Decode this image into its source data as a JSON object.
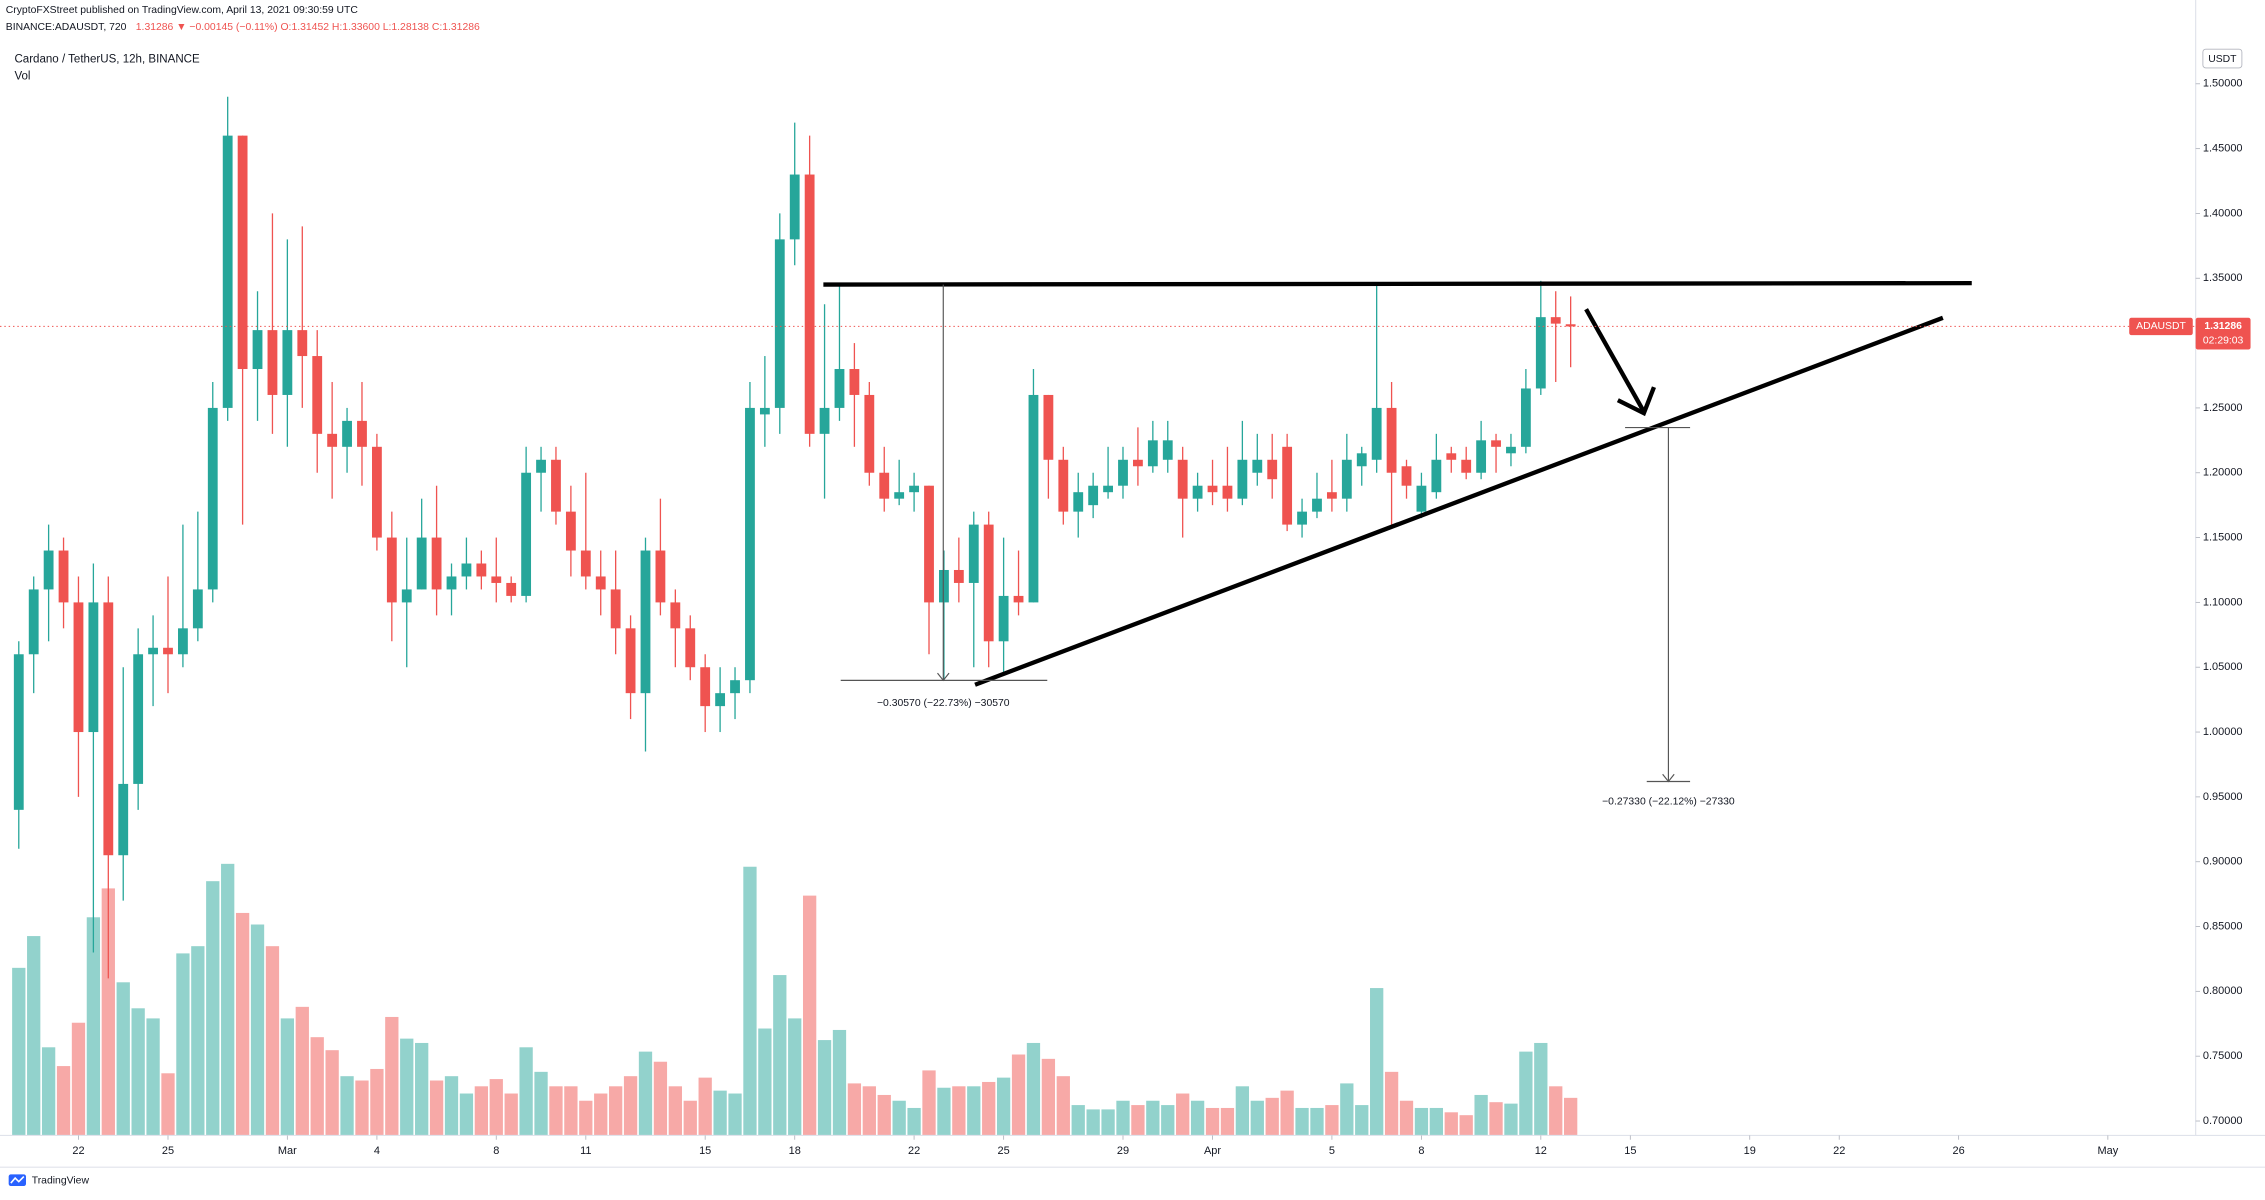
{
  "header": {
    "published": "CryptoFXStreet published on TradingView.com, April 13, 2021 09:30:59 UTC",
    "symbol": "BINANCE:ADAUSDT, 720",
    "quote": "1.31286 ▼ −0.00145 (−0.11%) O:1.31452 H:1.33600 L:1.28138 C:1.31286"
  },
  "footer": {
    "brand": "TradingView"
  },
  "chart_data": {
    "type": "candlestick",
    "title": "Cardano / TetherUS, 12h, BINANCE",
    "subtitle": "Vol",
    "currency": "USDT",
    "symbol_tag": "ADAUSDT",
    "countdown": "02:29:03",
    "up_color": "#26a69a",
    "down_color": "#ef5350",
    "open": [
      0.94,
      1.06,
      1.11,
      1.14,
      1.1,
      1.0,
      1.1,
      0.905,
      0.96,
      1.06,
      1.065,
      1.06,
      1.08,
      1.11,
      1.25,
      1.46,
      1.28,
      1.31,
      1.26,
      1.31,
      1.29,
      1.23,
      1.22,
      1.24,
      1.22,
      1.15,
      1.1,
      1.11,
      1.15,
      1.11,
      1.12,
      1.13,
      1.12,
      1.115,
      1.105,
      1.2,
      1.21,
      1.17,
      1.14,
      1.12,
      1.11,
      1.08,
      1.03,
      1.14,
      1.1,
      1.08,
      1.05,
      1.02,
      1.03,
      1.04,
      1.245,
      1.25,
      1.38,
      1.43,
      1.23,
      1.25,
      1.28,
      1.26,
      1.2,
      1.18,
      1.185,
      1.19,
      1.1,
      1.125,
      1.115,
      1.16,
      1.07,
      1.105,
      1.1,
      1.26,
      1.21,
      1.17,
      1.175,
      1.185,
      1.19,
      1.21,
      1.205,
      1.21,
      1.21,
      1.18,
      1.19,
      1.19,
      1.18,
      1.2,
      1.21,
      1.22,
      1.16,
      1.17,
      1.185,
      1.18,
      1.205,
      1.21,
      1.25,
      1.205,
      1.17,
      1.185,
      1.215,
      1.21,
      1.2,
      1.225,
      1.215,
      1.22,
      1.265,
      1.32,
      1.31452
    ],
    "high": [
      1.07,
      1.12,
      1.16,
      1.15,
      1.12,
      1.13,
      1.12,
      1.05,
      1.08,
      1.09,
      1.12,
      1.16,
      1.17,
      1.27,
      1.49,
      1.46,
      1.34,
      1.4,
      1.38,
      1.39,
      1.31,
      1.27,
      1.25,
      1.27,
      1.23,
      1.17,
      1.15,
      1.18,
      1.19,
      1.13,
      1.15,
      1.14,
      1.15,
      1.12,
      1.22,
      1.22,
      1.22,
      1.19,
      1.2,
      1.14,
      1.14,
      1.09,
      1.15,
      1.18,
      1.11,
      1.09,
      1.06,
      1.05,
      1.05,
      1.27,
      1.29,
      1.4,
      1.47,
      1.46,
      1.33,
      1.345,
      1.3,
      1.27,
      1.22,
      1.21,
      1.2,
      1.19,
      1.14,
      1.15,
      1.17,
      1.17,
      1.15,
      1.14,
      1.28,
      1.26,
      1.22,
      1.2,
      1.2,
      1.22,
      1.22,
      1.235,
      1.24,
      1.24,
      1.22,
      1.2,
      1.21,
      1.22,
      1.24,
      1.23,
      1.23,
      1.23,
      1.18,
      1.2,
      1.21,
      1.23,
      1.22,
      1.345,
      1.27,
      1.21,
      1.2,
      1.23,
      1.22,
      1.22,
      1.24,
      1.23,
      1.23,
      1.28,
      1.348,
      1.34,
      1.336
    ],
    "low": [
      0.91,
      1.03,
      1.07,
      1.08,
      0.95,
      0.83,
      0.81,
      0.87,
      0.94,
      1.02,
      1.03,
      1.05,
      1.07,
      1.1,
      1.24,
      1.16,
      1.24,
      1.23,
      1.22,
      1.25,
      1.2,
      1.18,
      1.2,
      1.19,
      1.14,
      1.07,
      1.05,
      1.11,
      1.09,
      1.09,
      1.11,
      1.11,
      1.1,
      1.1,
      1.1,
      1.17,
      1.16,
      1.12,
      1.11,
      1.09,
      1.06,
      1.01,
      0.985,
      1.09,
      1.05,
      1.04,
      1.0,
      1.0,
      1.01,
      1.03,
      1.22,
      1.23,
      1.36,
      1.22,
      1.18,
      1.24,
      1.22,
      1.19,
      1.17,
      1.175,
      1.17,
      1.06,
      1.04,
      1.1,
      1.05,
      1.05,
      1.045,
      1.09,
      1.1,
      1.18,
      1.16,
      1.15,
      1.165,
      1.18,
      1.18,
      1.19,
      1.2,
      1.2,
      1.15,
      1.17,
      1.175,
      1.17,
      1.175,
      1.19,
      1.18,
      1.155,
      1.15,
      1.165,
      1.17,
      1.17,
      1.19,
      1.2,
      1.16,
      1.18,
      1.165,
      1.18,
      1.2,
      1.195,
      1.195,
      1.2,
      1.205,
      1.215,
      1.26,
      1.27,
      1.28138
    ],
    "close": [
      1.06,
      1.11,
      1.14,
      1.1,
      1.0,
      1.1,
      0.905,
      0.96,
      1.06,
      1.065,
      1.06,
      1.08,
      1.11,
      1.25,
      1.46,
      1.28,
      1.31,
      1.26,
      1.31,
      1.29,
      1.23,
      1.22,
      1.24,
      1.22,
      1.15,
      1.1,
      1.11,
      1.15,
      1.11,
      1.12,
      1.13,
      1.12,
      1.115,
      1.105,
      1.2,
      1.21,
      1.17,
      1.14,
      1.12,
      1.11,
      1.08,
      1.03,
      1.14,
      1.1,
      1.08,
      1.05,
      1.02,
      1.03,
      1.04,
      1.25,
      1.25,
      1.38,
      1.43,
      1.23,
      1.25,
      1.28,
      1.26,
      1.2,
      1.18,
      1.185,
      1.19,
      1.1,
      1.125,
      1.115,
      1.16,
      1.07,
      1.105,
      1.1,
      1.26,
      1.21,
      1.17,
      1.185,
      1.19,
      1.19,
      1.21,
      1.205,
      1.225,
      1.225,
      1.18,
      1.19,
      1.185,
      1.18,
      1.21,
      1.21,
      1.195,
      1.16,
      1.17,
      1.18,
      1.18,
      1.21,
      1.215,
      1.25,
      1.2,
      1.19,
      1.19,
      1.21,
      1.21,
      1.2,
      1.225,
      1.22,
      1.22,
      1.265,
      1.32,
      1.315,
      1.31286
    ],
    "volume": [
      580,
      690,
      305,
      240,
      390,
      755,
      855,
      530,
      440,
      405,
      215,
      630,
      655,
      880,
      940,
      770,
      730,
      655,
      405,
      445,
      340,
      295,
      205,
      190,
      230,
      410,
      335,
      320,
      190,
      205,
      145,
      170,
      195,
      145,
      305,
      220,
      170,
      170,
      120,
      145,
      170,
      205,
      290,
      255,
      170,
      120,
      200,
      155,
      145,
      930,
      370,
      555,
      405,
      830,
      330,
      365,
      180,
      170,
      140,
      120,
      95,
      225,
      165,
      170,
      170,
      185,
      200,
      280,
      320,
      265,
      205,
      105,
      90,
      90,
      120,
      105,
      120,
      105,
      145,
      120,
      95,
      95,
      170,
      120,
      130,
      155,
      95,
      95,
      105,
      180,
      105,
      510,
      220,
      120,
      95,
      95,
      80,
      70,
      140,
      115,
      110,
      290,
      320,
      170,
      130
    ],
    "volume_lim": [
      0,
      3930
    ],
    "ylim": [
      0.6889,
      1.5646
    ],
    "yticks": [
      {
        "value": 0.7,
        "label": "0.70000"
      },
      {
        "value": 0.75,
        "label": "0.75000"
      },
      {
        "value": 0.8,
        "label": "0.80000"
      },
      {
        "value": 0.85,
        "label": "0.85000"
      },
      {
        "value": 0.9,
        "label": "0.90000"
      },
      {
        "value": 0.95,
        "label": "0.95000"
      },
      {
        "value": 1.0,
        "label": "1.00000"
      },
      {
        "value": 1.05,
        "label": "1.05000"
      },
      {
        "value": 1.1,
        "label": "1.10000"
      },
      {
        "value": 1.15,
        "label": "1.15000"
      },
      {
        "value": 1.2,
        "label": "1.20000"
      },
      {
        "value": 1.25,
        "label": "1.25000"
      },
      {
        "value": 1.3,
        "label": "1.30000"
      },
      {
        "value": 1.35,
        "label": "1.35000"
      },
      {
        "value": 1.4,
        "label": "1.40000"
      },
      {
        "value": 1.45,
        "label": "1.45000"
      },
      {
        "value": 1.5,
        "label": "1.50000"
      }
    ],
    "xticks": [
      {
        "value": 4,
        "label": "22"
      },
      {
        "value": 10,
        "label": "25"
      },
      {
        "value": 18,
        "label": "Mar"
      },
      {
        "value": 24,
        "label": "4"
      },
      {
        "value": 32,
        "label": "8"
      },
      {
        "value": 38,
        "label": "11"
      },
      {
        "value": 46,
        "label": "15"
      },
      {
        "value": 52,
        "label": "18"
      },
      {
        "value": 60,
        "label": "22"
      },
      {
        "value": 66,
        "label": "25"
      },
      {
        "value": 74,
        "label": "29"
      },
      {
        "value": 80,
        "label": "Apr"
      },
      {
        "value": 88,
        "label": "5"
      },
      {
        "value": 94,
        "label": "8"
      },
      {
        "value": 102,
        "label": "12"
      },
      {
        "value": 108,
        "label": "15"
      },
      {
        "value": 116,
        "label": "19"
      },
      {
        "value": 122,
        "label": "22"
      },
      {
        "value": 130,
        "label": "26"
      },
      {
        "value": 140,
        "label": "May"
      }
    ],
    "annotations": [
      "−0.30570 (−22.73%) −30570",
      "−0.27330 (−22.12%) −27330"
    ]
  }
}
